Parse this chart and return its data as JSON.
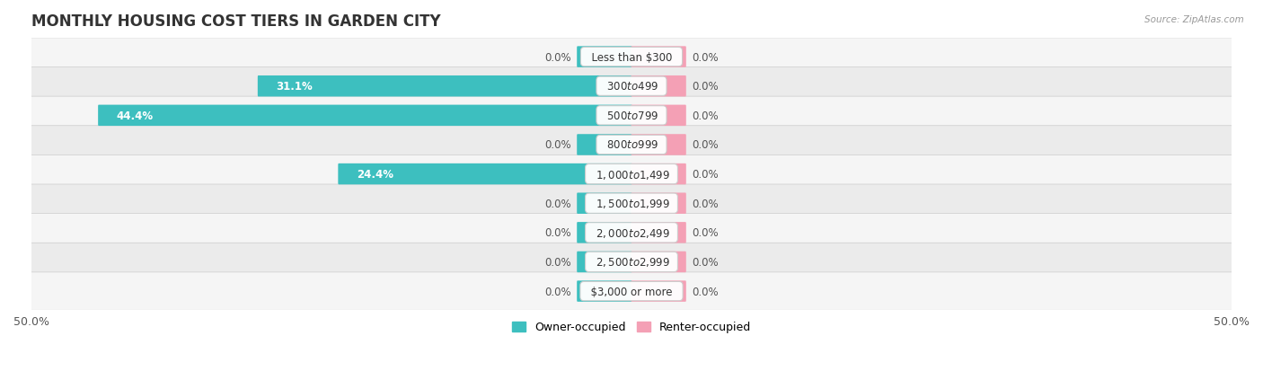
{
  "title": "MONTHLY HOUSING COST TIERS IN GARDEN CITY",
  "source": "Source: ZipAtlas.com",
  "categories": [
    "Less than $300",
    "$300 to $499",
    "$500 to $799",
    "$800 to $999",
    "$1,000 to $1,499",
    "$1,500 to $1,999",
    "$2,000 to $2,499",
    "$2,500 to $2,999",
    "$3,000 or more"
  ],
  "owner_values": [
    0.0,
    31.1,
    44.4,
    0.0,
    24.4,
    0.0,
    0.0,
    0.0,
    0.0
  ],
  "renter_values": [
    0.0,
    0.0,
    0.0,
    0.0,
    0.0,
    0.0,
    0.0,
    0.0,
    0.0
  ],
  "owner_color": "#3DBFBF",
  "renter_color": "#F4A0B5",
  "owner_label": "Owner-occupied",
  "renter_label": "Renter-occupied",
  "xlim": 50.0,
  "bar_height": 0.62,
  "stub_size": 4.5,
  "background_color": "#ffffff",
  "row_bg_even": "#f5f5f5",
  "row_bg_odd": "#ebebeb",
  "title_fontsize": 12,
  "label_fontsize": 8.5,
  "tick_fontsize": 9,
  "category_fontsize": 8.5
}
